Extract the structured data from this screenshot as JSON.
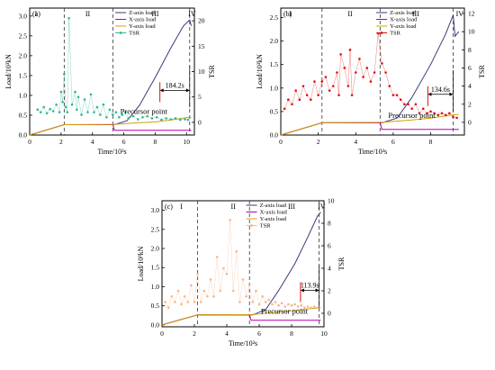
{
  "colors": {
    "z": "#3a3a7a",
    "x": "#b000b0",
    "y": "#d4a000",
    "tsr_a": "#2bb89a",
    "tsr_b": "#e01010",
    "tsr_c": "#f5b58a",
    "annot": "#e01010"
  },
  "chart_data": [
    {
      "type": "line",
      "panel_label": "(a)",
      "xlabel": "Time/10²s",
      "ylabel": "Load/10³kN",
      "ylabel_right": "TSR",
      "xlim": [
        0,
        10.5
      ],
      "ylim": [
        0,
        3.2
      ],
      "ylim_right": [
        -2.5,
        22.5
      ],
      "xticks": [
        "0",
        "2",
        "4",
        "6",
        "8",
        "10"
      ],
      "yticks": [
        "0.0",
        "0.5",
        "1.0",
        "1.5",
        "2.0",
        "2.5",
        "3.0"
      ],
      "yticks_right": [
        "0",
        "5",
        "10",
        "15",
        "20"
      ],
      "stage_labels": [
        "I",
        "II",
        "III",
        "IV"
      ],
      "stage_boundaries": [
        2.2,
        5.3,
        10.2
      ],
      "stage_label_x": [
        0.4,
        3.7,
        8.0,
        10.35
      ],
      "legend": [
        "Z-axis load",
        "X-axis load",
        "Y-axis load",
        "TSR"
      ],
      "legend_position": "top-center",
      "annotation_text": "184.2s",
      "precursor_label": "Precursor point",
      "precursor": {
        "start": 8.3,
        "end": 10.2,
        "tsr": 4.0
      },
      "series": [
        {
          "name": "Z-axis load",
          "x": [
            0,
            2.2,
            5.4,
            6.2,
            7.0,
            8.0,
            9.0,
            9.8,
            10.2,
            10.3
          ],
          "y": [
            0,
            0.26,
            0.26,
            0.36,
            0.75,
            1.45,
            2.2,
            2.75,
            2.9,
            2.75
          ]
        },
        {
          "name": "X-axis load",
          "x": [
            0,
            2.2,
            5.3,
            5.4,
            10.3
          ],
          "y": [
            0,
            0.26,
            0.26,
            0.12,
            0.12
          ]
        },
        {
          "name": "Y-axis load",
          "x": [
            0,
            2.2,
            5.4,
            7.0,
            8.0,
            9.0,
            10.0,
            10.3
          ],
          "y": [
            0,
            0.26,
            0.27,
            0.31,
            0.33,
            0.38,
            0.44,
            0.45
          ]
        },
        {
          "name": "TSR",
          "x": [
            0.5,
            0.7,
            0.9,
            1.1,
            1.3,
            1.5,
            1.7,
            1.9,
            2.0,
            2.1,
            2.2,
            2.3,
            2.4,
            2.5,
            2.7,
            2.9,
            3.0,
            3.1,
            3.3,
            3.5,
            3.7,
            3.9,
            4.1,
            4.3,
            4.5,
            4.7,
            4.9,
            5.1,
            5.3,
            5.5,
            5.7,
            5.9,
            6.1,
            6.3,
            6.6,
            6.9,
            7.2,
            7.5,
            7.8,
            8.1,
            8.4,
            8.7,
            9.0,
            9.3,
            9.6,
            9.9,
            10.1
          ],
          "y": [
            2.5,
            2.0,
            3.0,
            1.8,
            2.6,
            2.2,
            3.5,
            2.0,
            6.0,
            4.0,
            9.5,
            3.0,
            2.0,
            20.5,
            3.5,
            6.0,
            2.5,
            5.0,
            1.5,
            4.5,
            2.0,
            5.5,
            2.0,
            3.0,
            1.5,
            3.5,
            1.0,
            2.5,
            1.5,
            2.0,
            1.0,
            1.5,
            2.0,
            0.8,
            1.2,
            0.6,
            1.0,
            1.2,
            0.8,
            1.0,
            0.5,
            0.8,
            0.6,
            0.8,
            0.5,
            0.6,
            0.5
          ]
        }
      ]
    },
    {
      "type": "line",
      "panel_label": "(b)",
      "xlabel": "Time/10²s",
      "ylabel": "Load/10³kN",
      "ylabel_right": "TSR",
      "xlim": [
        0,
        9.8
      ],
      "ylim": [
        0,
        2.7
      ],
      "ylim_right": [
        -1.4,
        12.6
      ],
      "xticks": [
        "0",
        "2",
        "4",
        "6",
        "8"
      ],
      "yticks": [
        "0.0",
        "0.5",
        "1.0",
        "1.5",
        "2.0",
        "2.5"
      ],
      "yticks_right": [
        "0",
        "2",
        "4",
        "6",
        "8",
        "10",
        "12"
      ],
      "stage_labels": [
        "I",
        "II",
        "III",
        "IV"
      ],
      "stage_boundaries": [
        2.2,
        5.3,
        9.2
      ],
      "stage_label_x": [
        0.5,
        3.7,
        7.2,
        9.55
      ],
      "legend": [
        "Z-axis load",
        "X-axis load",
        "Y-axis load",
        "TSR"
      ],
      "legend_position": "top-center",
      "annotation_text": "134.6s",
      "precursor_label": "Precursor point",
      "precursor": {
        "start": 7.85,
        "end": 9.2,
        "tsr": 1.8
      },
      "series": [
        {
          "name": "Z-axis load",
          "x": [
            0,
            2.2,
            5.4,
            6.2,
            7.0,
            8.0,
            8.8,
            9.2,
            9.3,
            9.5
          ],
          "y": [
            0,
            0.26,
            0.26,
            0.36,
            0.8,
            1.5,
            2.15,
            2.55,
            2.1,
            2.2
          ]
        },
        {
          "name": "X-axis load",
          "x": [
            0,
            2.2,
            5.3,
            5.4,
            9.5
          ],
          "y": [
            0,
            0.26,
            0.26,
            0.12,
            0.12
          ]
        },
        {
          "name": "Y-axis load",
          "x": [
            0,
            2.2,
            5.4,
            7.0,
            8.0,
            9.0,
            9.5
          ],
          "y": [
            0,
            0.26,
            0.27,
            0.32,
            0.36,
            0.42,
            0.44
          ]
        },
        {
          "name": "TSR",
          "x": [
            0.2,
            0.4,
            0.6,
            0.8,
            1.0,
            1.2,
            1.4,
            1.6,
            1.8,
            2.0,
            2.2,
            2.4,
            2.6,
            2.8,
            3.0,
            3.1,
            3.2,
            3.4,
            3.6,
            3.7,
            3.8,
            4.0,
            4.2,
            4.4,
            4.6,
            4.8,
            5.0,
            5.2,
            5.4,
            5.6,
            5.8,
            6.0,
            6.2,
            6.4,
            6.6,
            6.8,
            7.0,
            7.2,
            7.4,
            7.6,
            7.8,
            8.0,
            8.2,
            8.4,
            8.6,
            8.8,
            9.0,
            9.2,
            9.4
          ],
          "y": [
            1.5,
            2.5,
            2.0,
            3.5,
            2.5,
            4.0,
            3.0,
            2.5,
            4.5,
            3.0,
            4.5,
            5.0,
            3.5,
            4.0,
            5.5,
            3.0,
            7.5,
            6.0,
            4.0,
            8.0,
            3.0,
            5.5,
            7.0,
            5.0,
            6.0,
            4.5,
            5.5,
            9.8,
            6.5,
            5.5,
            4.0,
            3.0,
            3.0,
            2.5,
            2.0,
            2.0,
            1.5,
            2.0,
            1.0,
            1.5,
            1.0,
            1.2,
            1.0,
            0.8,
            1.0,
            0.8,
            1.0,
            0.6,
            0.5
          ]
        }
      ]
    },
    {
      "type": "line",
      "panel_label": "(c)",
      "xlabel": "Time/10²s",
      "ylabel": "Load/10³kN",
      "ylabel_right": "TSR",
      "xlim": [
        0,
        10.0
      ],
      "ylim": [
        -0.05,
        3.25
      ],
      "ylim_right": [
        -1.2,
        10.0
      ],
      "xticks": [
        "0",
        "2",
        "4",
        "6",
        "8",
        "10"
      ],
      "yticks": [
        "0.0",
        "0.5",
        "1.0",
        "1.5",
        "2.0",
        "2.5",
        "3.0"
      ],
      "yticks_right": [
        "0",
        "2",
        "4",
        "6",
        "8",
        "10"
      ],
      "stage_labels": [
        "I",
        "II",
        "III",
        "IV"
      ],
      "stage_boundaries": [
        2.2,
        5.4,
        9.7
      ],
      "stage_label_x": [
        1.2,
        4.4,
        8.0,
        9.85
      ],
      "legend": [
        "Z-axis load",
        "X-axis load",
        "Y-axis load",
        "TSR"
      ],
      "legend_position": "top-center",
      "annotation_text": "113.9s",
      "precursor_label": "Precursor point",
      "precursor": {
        "start": 8.55,
        "end": 9.7,
        "tsr": 1.0
      },
      "series": [
        {
          "name": "Z-axis load",
          "x": [
            0,
            2.2,
            5.6,
            6.4,
            7.2,
            8.2,
            9.0,
            9.6,
            9.8
          ],
          "y": [
            0,
            0.26,
            0.26,
            0.4,
            0.9,
            1.6,
            2.3,
            2.85,
            2.95
          ]
        },
        {
          "name": "X-axis load",
          "x": [
            0,
            2.2,
            5.4,
            5.5,
            9.8
          ],
          "y": [
            0,
            0.26,
            0.26,
            0.12,
            0.12
          ]
        },
        {
          "name": "Y-axis load",
          "x": [
            0,
            2.2,
            5.6,
            7.0,
            8.0,
            9.0,
            9.8
          ],
          "y": [
            0,
            0.26,
            0.27,
            0.33,
            0.37,
            0.42,
            0.45
          ]
        },
        {
          "name": "TSR",
          "x": [
            0.2,
            0.4,
            0.6,
            0.8,
            1.0,
            1.2,
            1.4,
            1.6,
            1.8,
            2.0,
            2.2,
            2.4,
            2.6,
            2.8,
            3.0,
            3.2,
            3.4,
            3.6,
            3.8,
            4.0,
            4.2,
            4.4,
            4.6,
            4.8,
            5.0,
            5.2,
            5.4,
            5.6,
            5.8,
            6.0,
            6.2,
            6.4,
            6.6,
            6.8,
            7.0,
            7.2,
            7.4,
            7.6,
            7.8,
            8.0,
            8.2,
            8.4,
            8.6,
            8.8,
            9.0,
            9.2,
            9.4,
            9.6
          ],
          "y": [
            1.0,
            0.5,
            1.5,
            1.0,
            2.0,
            0.8,
            1.5,
            1.0,
            2.5,
            1.0,
            3.5,
            1.0,
            2.0,
            1.5,
            3.0,
            1.5,
            5.0,
            2.0,
            4.0,
            3.5,
            8.3,
            2.0,
            5.5,
            1.0,
            3.0,
            1.5,
            2.5,
            1.0,
            2.0,
            0.8,
            1.5,
            1.0,
            1.2,
            0.8,
            1.0,
            0.7,
            0.9,
            0.6,
            0.8,
            0.7,
            0.8,
            0.6,
            0.7,
            0.5,
            0.6,
            0.5,
            0.6,
            0.5
          ]
        }
      ]
    }
  ]
}
